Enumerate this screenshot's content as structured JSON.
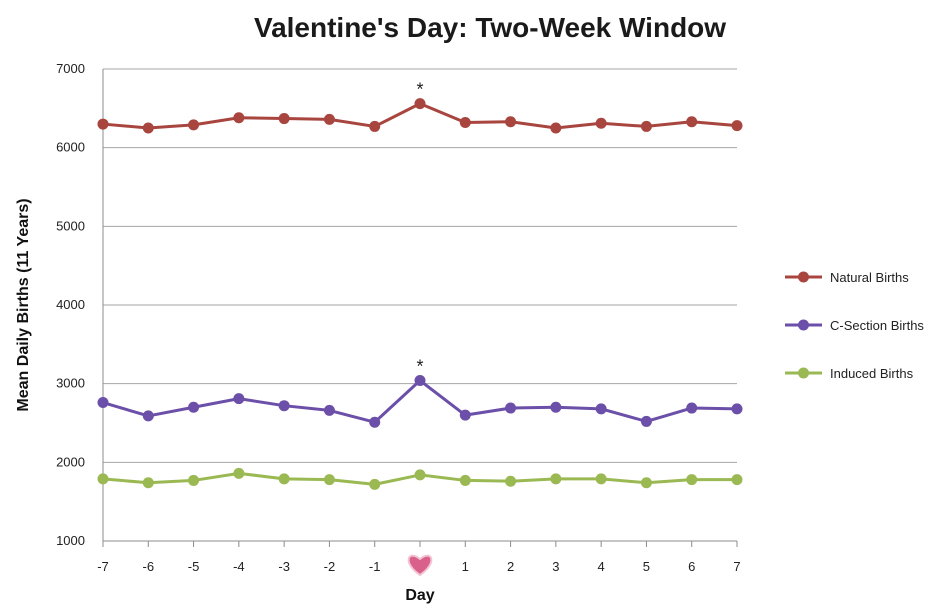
{
  "chart_data": {
    "type": "line",
    "title": "Valentine's Day: Two-Week Window",
    "xlabel": "Day",
    "ylabel": "Mean Daily Births (11 Years)",
    "ylim": [
      1000,
      7000
    ],
    "yticks": [
      1000,
      2000,
      3000,
      4000,
      5000,
      6000,
      7000
    ],
    "x": [
      -7,
      -6,
      -5,
      -4,
      -3,
      -2,
      -1,
      0,
      1,
      2,
      3,
      4,
      5,
      6,
      7
    ],
    "x_tick_labels": [
      "-7",
      "-6",
      "-5",
      "-4",
      "-3",
      "-2",
      "-1",
      "",
      "1",
      "2",
      "3",
      "4",
      "5",
      "6",
      "7"
    ],
    "special_tick": {
      "x": 0,
      "icon": "heart-icon",
      "color": "#d9608a"
    },
    "grid": "horizontal",
    "legend_position": "right",
    "series": [
      {
        "name": "Natural Births",
        "color": "#a8453f",
        "values": [
          6300,
          6250,
          6290,
          6380,
          6370,
          6360,
          6270,
          6560,
          6320,
          6330,
          6250,
          6310,
          6270,
          6330,
          6280
        ]
      },
      {
        "name": "C-Section Births",
        "color": "#6b4fa8",
        "values": [
          2760,
          2590,
          2700,
          2810,
          2720,
          2660,
          2510,
          3040,
          2600,
          2690,
          2700,
          2680,
          2520,
          2690,
          2680
        ]
      },
      {
        "name": "Induced Births",
        "color": "#9ab953",
        "values": [
          1790,
          1740,
          1770,
          1860,
          1790,
          1780,
          1720,
          1840,
          1770,
          1760,
          1790,
          1790,
          1740,
          1780,
          1780
        ]
      }
    ],
    "annotations": [
      {
        "text": "*",
        "x": 0,
        "series": 0
      },
      {
        "text": "*",
        "x": 0,
        "series": 1
      }
    ]
  }
}
